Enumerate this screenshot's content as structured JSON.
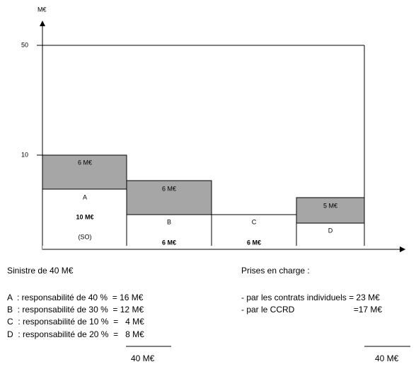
{
  "axis": {
    "unit": "M€",
    "ticks": [
      "50",
      "10"
    ]
  },
  "boxes": [
    {
      "letter": "A",
      "upper": "6 M€",
      "amount": "10 M€",
      "note": "(SO)"
    },
    {
      "letter": "B",
      "upper": "6 M€",
      "amount": "6 M€"
    },
    {
      "letter": "C",
      "amount": "6 M€"
    },
    {
      "letter": "D",
      "upper": "5 M€"
    }
  ],
  "left": {
    "title": "Sinistre de 40 M€",
    "lines": [
      "A  : responsabilité de 40 %  = 16 M€",
      "B  : responsabilité de 30 %  = 12 M€",
      "C  : responsabilité de 10 %  =   4 M€",
      "D  : responsabilité de 20 %  =   8 M€"
    ],
    "total": "40 M€"
  },
  "right": {
    "title": "Prises en charge :",
    "lines": [
      "- par les contrats individuels = 23 M€",
      "- par le CCRD                         =17 M€"
    ],
    "total": "40 M€"
  }
}
